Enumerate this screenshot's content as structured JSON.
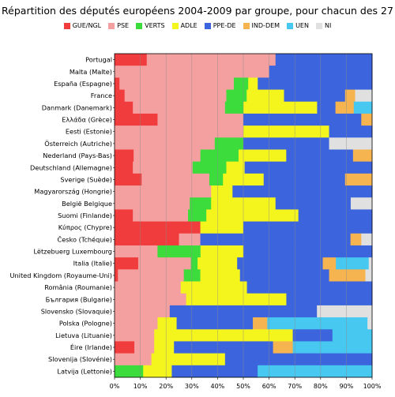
{
  "chart_data": {
    "type": "bar",
    "orientation": "horizontal",
    "stacked": "100%",
    "title": "Répartition des députés européens 2004-2009 par groupe, pour chacun des 27",
    "xlabel": "",
    "ylabel": "",
    "xlim": [
      0,
      100
    ],
    "xticks": [
      0,
      10,
      20,
      30,
      40,
      50,
      60,
      70,
      80,
      90,
      100
    ],
    "xtick_labels": [
      "0%",
      "10%",
      "20%",
      "30%",
      "40%",
      "50%",
      "60%",
      "70%",
      "80%",
      "90%",
      "100%"
    ],
    "grid": "vertical",
    "legend_position": "top",
    "groups": [
      {
        "name": "GUE/NGL",
        "color": "#f03c3c"
      },
      {
        "name": "PSE",
        "color": "#f5a0a0"
      },
      {
        "name": "VERTS",
        "color": "#3cdc3c"
      },
      {
        "name": "ADLE",
        "color": "#f5f51e"
      },
      {
        "name": "PPE-DE",
        "color": "#3c64dc"
      },
      {
        "name": "IND-DEM",
        "color": "#f5b450"
      },
      {
        "name": "UEN",
        "color": "#46c8f0"
      },
      {
        "name": "NI",
        "color": "#e0e0e0"
      }
    ],
    "countries": [
      {
        "label": "Portugal",
        "values": [
          12.5,
          50,
          0,
          0,
          37.5,
          0,
          0,
          0
        ]
      },
      {
        "label": "Malta (Malte)",
        "values": [
          0,
          60,
          0,
          0,
          40,
          0,
          0,
          0
        ]
      },
      {
        "label": "España (Espagne)",
        "values": [
          1.9,
          44.4,
          5.6,
          3.7,
          44.4,
          0,
          0,
          0
        ]
      },
      {
        "label": "France",
        "values": [
          3.9,
          39.5,
          7.9,
          14.5,
          23.7,
          3.9,
          0,
          6.6
        ]
      },
      {
        "label": "Danmark (Danemark)",
        "values": [
          7.1,
          35.7,
          7.1,
          28.6,
          7.1,
          7.1,
          7.1,
          0
        ]
      },
      {
        "label": "Ελλάδα (Grèce)",
        "values": [
          16.7,
          33.3,
          0,
          0,
          45.8,
          4.2,
          0,
          0
        ]
      },
      {
        "label": "Eesti (Estonie)",
        "values": [
          0,
          50,
          0,
          33.3,
          16.7,
          0,
          0,
          0
        ]
      },
      {
        "label": "Österreich (Autriche)",
        "values": [
          0,
          38.9,
          11.1,
          0,
          33.3,
          0,
          0,
          16.7
        ]
      },
      {
        "label": "Nederland (Pays-Bas)",
        "values": [
          7.4,
          25.9,
          14.8,
          18.5,
          25.9,
          7.4,
          0,
          0
        ]
      },
      {
        "label": "Deutschland (Allemagne)",
        "values": [
          7.1,
          23.2,
          13.1,
          7.1,
          49.5,
          0,
          0,
          0
        ]
      },
      {
        "label": "Sverige (Suède)",
        "values": [
          10.5,
          26.3,
          5.3,
          15.8,
          31.6,
          10.5,
          0,
          0
        ]
      },
      {
        "label": "Magyarország (Hongrie)",
        "values": [
          0,
          37.5,
          0,
          8.3,
          54.2,
          0,
          0,
          0
        ]
      },
      {
        "label": "België  Belgique",
        "values": [
          0,
          29.2,
          8.3,
          25,
          29.2,
          0,
          0,
          8.3
        ]
      },
      {
        "label": "Suomi (Finlande)",
        "values": [
          7.1,
          21.4,
          7.1,
          35.7,
          28.6,
          0,
          0,
          0
        ]
      },
      {
        "label": "Κύπρος (Chypre)",
        "values": [
          33.3,
          0,
          0,
          16.7,
          50,
          0,
          0,
          0
        ]
      },
      {
        "label": "Česko (Tchéquie)",
        "values": [
          25,
          8.3,
          0,
          0,
          58.3,
          4.2,
          0,
          4.2
        ]
      },
      {
        "label": "Lëtzebuerg  Luxembourg",
        "values": [
          0,
          16.7,
          16.7,
          16.7,
          50,
          0,
          0,
          0
        ]
      },
      {
        "label": "Italia (Italie)",
        "values": [
          9.2,
          20.5,
          2.6,
          15.4,
          33.3,
          5.1,
          12.8,
          1.3
        ]
      },
      {
        "label": "United Kingdom (Royaume-Uni)",
        "values": [
          1.3,
          25.6,
          6.4,
          15.4,
          34.6,
          14.1,
          0,
          2.6
        ]
      },
      {
        "label": "România (Roumanie)",
        "values": [
          0,
          25.7,
          0,
          25.7,
          48.6,
          0,
          0,
          0
        ]
      },
      {
        "label": "България (Bulgarie)",
        "values": [
          0,
          27.8,
          0,
          38.9,
          33.3,
          0,
          0,
          0
        ]
      },
      {
        "label": "Slovensko (Slovaquie)",
        "values": [
          0,
          21.4,
          0,
          0,
          57.1,
          0,
          0,
          21.4
        ]
      },
      {
        "label": "Polska (Pologne)",
        "values": [
          0,
          16.7,
          0,
          7.4,
          29.6,
          5.6,
          38.9,
          1.8
        ]
      },
      {
        "label": "Lietuva (Lituanie)",
        "values": [
          0,
          15.4,
          0,
          53.8,
          15.4,
          0,
          15.4,
          0
        ]
      },
      {
        "label": "Éire (Irlande)",
        "values": [
          7.7,
          7.7,
          0,
          7.7,
          38.5,
          7.7,
          30.8,
          0
        ]
      },
      {
        "label": "Slovenija (Slovénie)",
        "values": [
          0,
          14.3,
          0,
          28.6,
          57.1,
          0,
          0,
          0
        ]
      },
      {
        "label": "Latvija (Lettonie)",
        "values": [
          0,
          0,
          11.1,
          11.1,
          33.3,
          0,
          44.4,
          0
        ]
      }
    ]
  }
}
